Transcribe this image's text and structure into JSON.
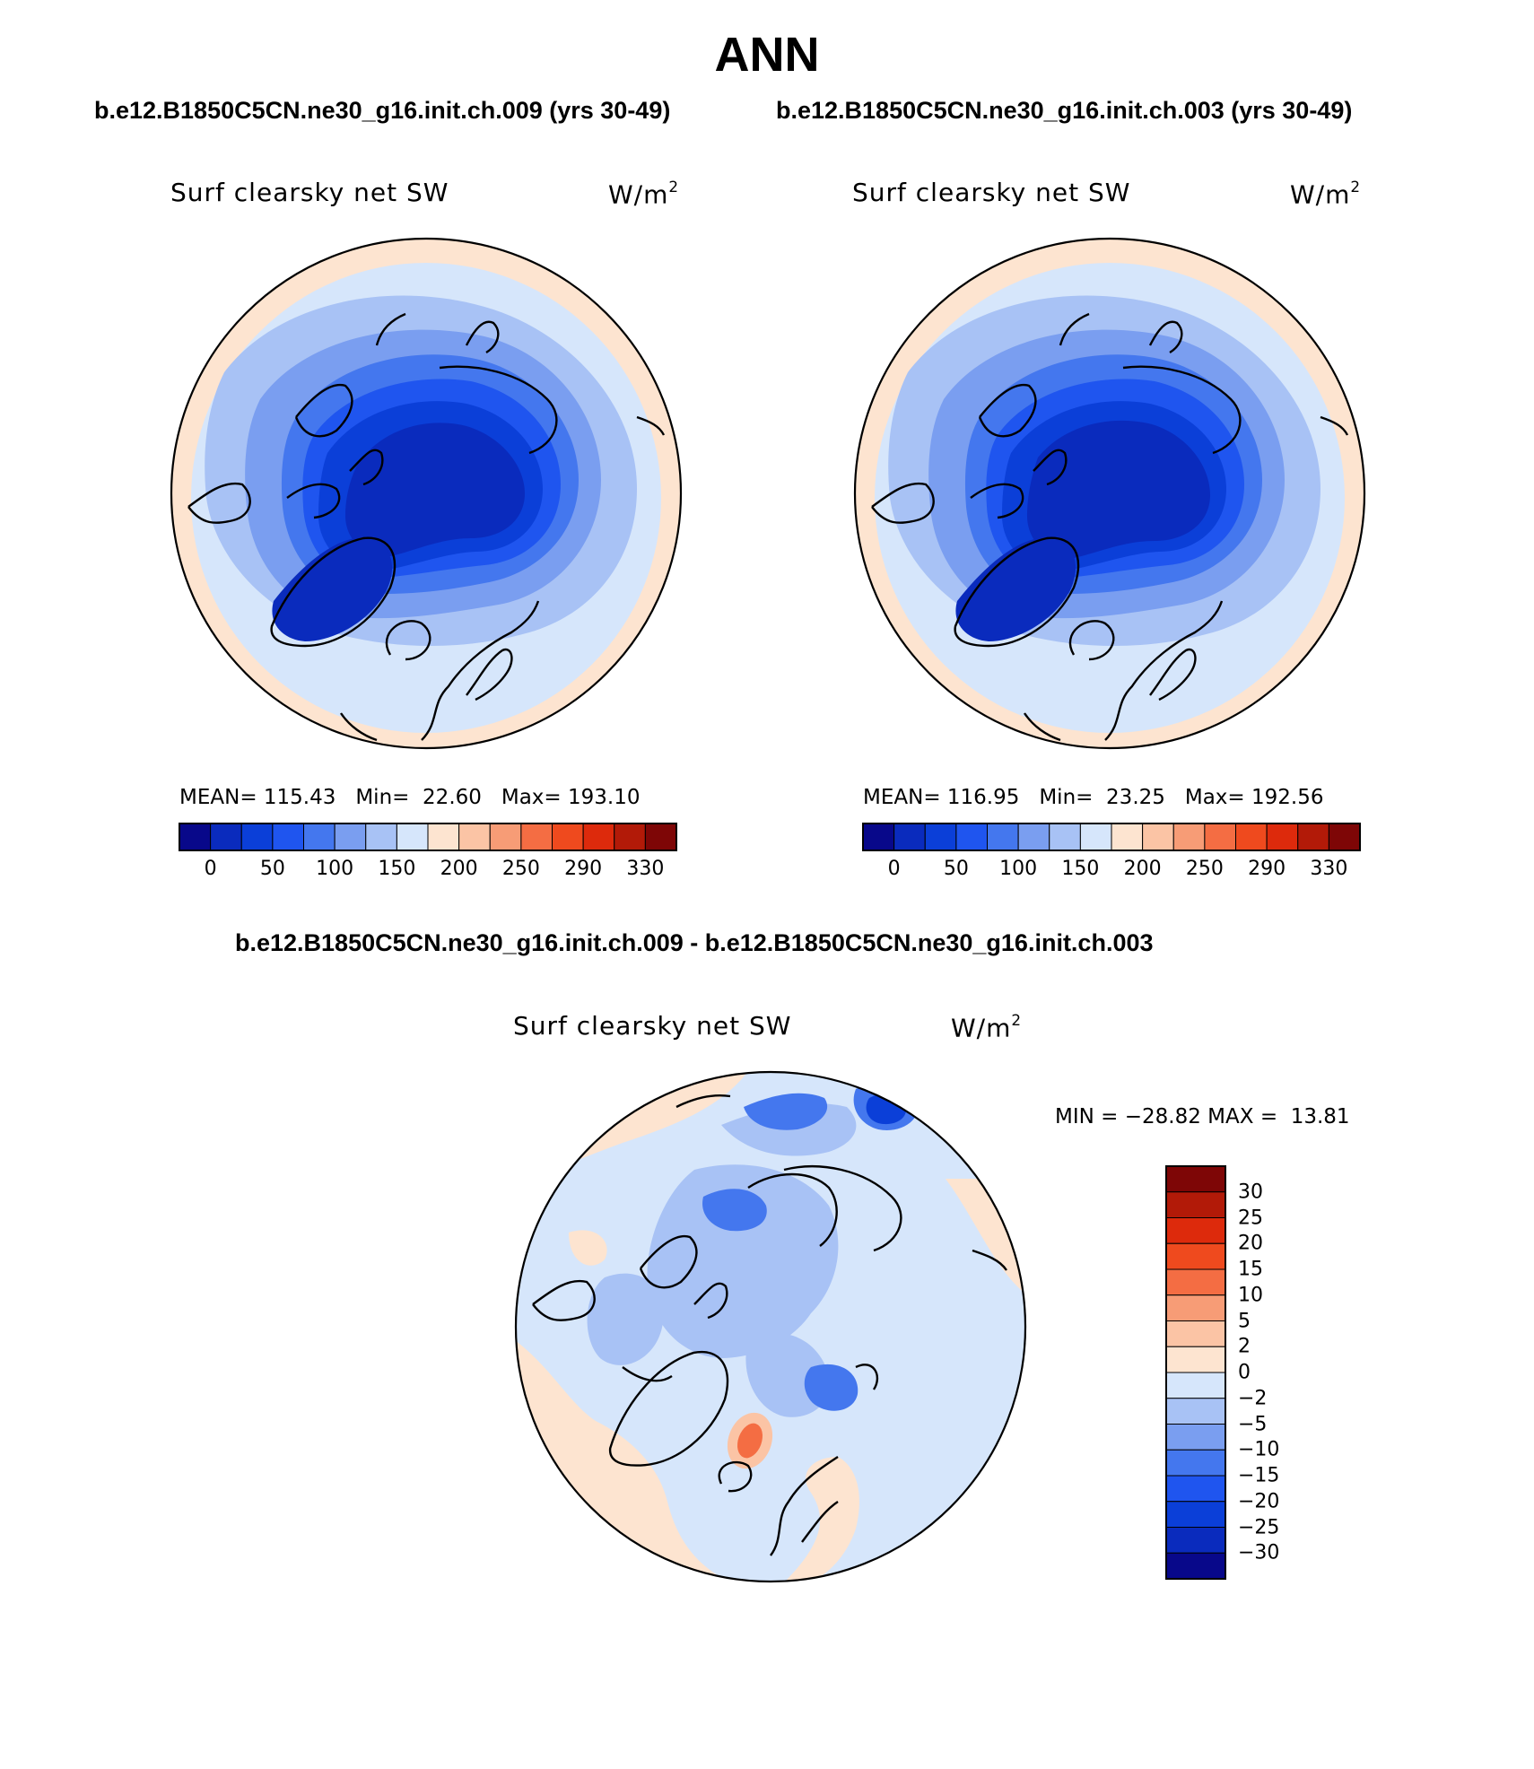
{
  "title": "ANN",
  "case_a_title": "b.e12.B1850C5CN.ne30_g16.init.ch.009 (yrs 30-49)",
  "case_b_title": "b.e12.B1850C5CN.ne30_g16.init.ch.003 (yrs 30-49)",
  "diff_title": "b.e12.B1850C5CN.ne30_g16.init.ch.009 - b.e12.B1850C5CN.ne30_g16.init.ch.003",
  "variable": "Surf clearsky net SW",
  "units_base": "W/m",
  "units_exp": "2",
  "panels": [
    {
      "mean_label": "MEAN=",
      "mean": "115.43",
      "min_label": "Min=",
      "min": "22.60",
      "max_label": "Max=",
      "max": "193.10"
    },
    {
      "mean_label": "MEAN=",
      "mean": "116.95",
      "min_label": "Min=",
      "min": "23.25",
      "max_label": "Max=",
      "max": "192.56"
    }
  ],
  "diff_stats": {
    "min_label": "MIN =",
    "min": "−28.82",
    "max_label": "MAX =",
    "max": "13.81"
  },
  "abs_colorbar": {
    "colors": [
      "#08088a",
      "#0a2bbd",
      "#0b3fd8",
      "#1f55ef",
      "#4477ee",
      "#7a9ef0",
      "#a8c2f5",
      "#d6e6fb",
      "#fde4d0",
      "#fbc4a5",
      "#f79c76",
      "#f46d43",
      "#ef4a1e",
      "#dd2a0c",
      "#b21a08",
      "#7e0606"
    ],
    "labels": [
      "0",
      "50",
      "100",
      "150",
      "200",
      "250",
      "290",
      "330"
    ]
  },
  "diff_colorbar": {
    "colors": [
      "#7e0606",
      "#b21a08",
      "#dd2a0c",
      "#ef4a1e",
      "#f46d43",
      "#f79c76",
      "#fbc4a5",
      "#fde4d0",
      "#d6e6fb",
      "#a8c2f5",
      "#7a9ef0",
      "#4477ee",
      "#1f55ef",
      "#0b3fd8",
      "#0a2bbd",
      "#08088a"
    ],
    "labels": [
      "30",
      "25",
      "20",
      "15",
      "10",
      "5",
      "2",
      "0",
      "−2",
      "−5",
      "−10",
      "−15",
      "−20",
      "−25",
      "−30"
    ]
  },
  "map_colors": {
    "outer": "#fde4d0",
    "ring1": "#d6e6fb",
    "ring2": "#a8c2f5",
    "ring3": "#7a9ef0",
    "ring4": "#4477ee",
    "ring5": "#1f55ef",
    "ring6": "#0b3fd8",
    "core": "#0a2bbd",
    "diff_bg": "#d6e6fb",
    "diff_warm": "#fde4d0",
    "diff_mid": "#a8c2f5",
    "diff_deep": "#4477ee",
    "diff_peak": "#f46d43",
    "diff_peak_halo": "#fbc4a5",
    "diff_strong": "#0b3fd8"
  }
}
